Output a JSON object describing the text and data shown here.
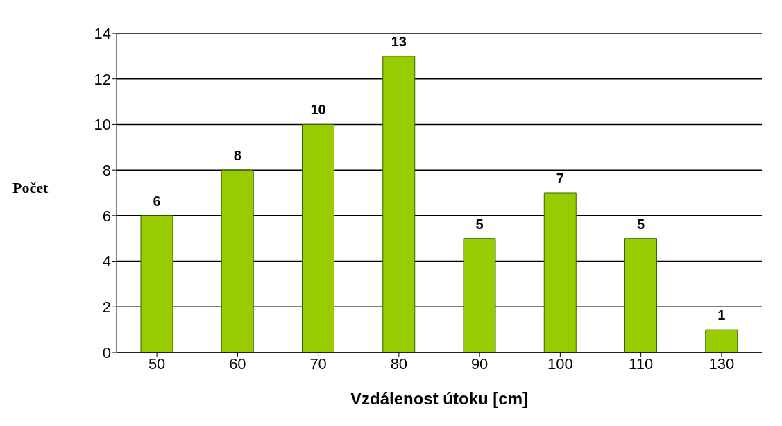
{
  "chart_data": {
    "type": "bar",
    "xlabel": "Vzdálenost útoku [cm]",
    "ylabel": "Počet",
    "categories": [
      "50",
      "60",
      "70",
      "80",
      "90",
      "100",
      "110",
      "130"
    ],
    "values": [
      6,
      8,
      10,
      13,
      5,
      7,
      5,
      1
    ],
    "color": "#99cc00",
    "ylim": [
      0,
      14
    ],
    "yticks": [
      0,
      2,
      4,
      6,
      8,
      10,
      12,
      14
    ],
    "grid": "y",
    "data_labels": true
  }
}
